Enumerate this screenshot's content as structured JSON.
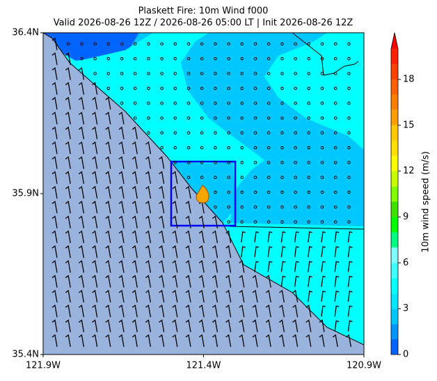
{
  "chart_data": {
    "type": "map",
    "title": "Plaskett Fire: 10m Wind f000",
    "subtitle": "Valid 2026-08-26 12Z / 2026-08-26 05:00 LT | Init 2026-08-26 12Z",
    "xlim": [
      -121.9,
      -120.9
    ],
    "ylim": [
      35.4,
      36.4
    ],
    "xticks": [
      {
        "value": -121.9,
        "label": "121.9W"
      },
      {
        "value": -121.4,
        "label": "121.4W"
      },
      {
        "value": -120.9,
        "label": "120.9W"
      }
    ],
    "yticks": [
      {
        "value": 35.4,
        "label": "35.4N"
      },
      {
        "value": 35.9,
        "label": "35.9N"
      },
      {
        "value": 36.4,
        "label": "36.4N"
      }
    ],
    "colorbar": {
      "label": "10m wind speed (m/s)",
      "clim": [
        0,
        20
      ],
      "ticks": [
        0,
        3,
        6,
        9,
        12,
        15,
        18
      ],
      "colors": [
        "#0064ff",
        "#0096ff",
        "#00c8ff",
        "#00e6ff",
        "#00ffff",
        "#40ffff",
        "#80ffff",
        "#00ff80",
        "#00ff00",
        "#40e000",
        "#80ff00",
        "#c8ff00",
        "#ffff00",
        "#ffe000",
        "#ffc800",
        "#ffa000",
        "#ff8000",
        "#ff6000",
        "#ff4000",
        "#ff2000"
      ],
      "extend_color": "#ff0000"
    }
  }
}
